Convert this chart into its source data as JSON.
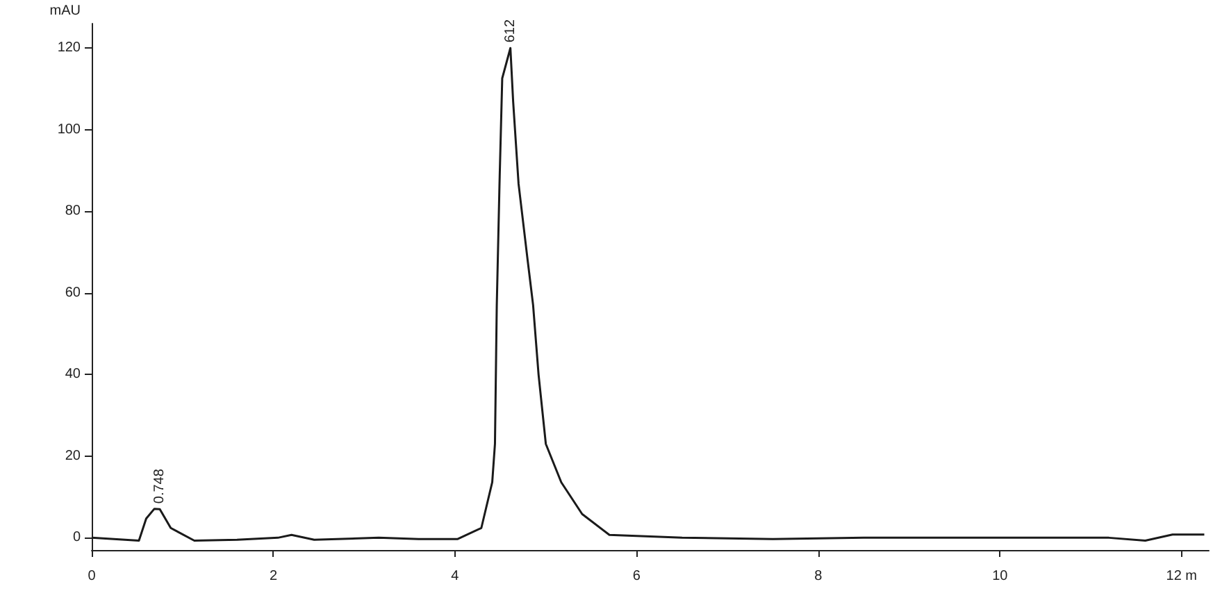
{
  "chart_data": {
    "type": "line",
    "ylabel": "mAU",
    "x": [
      0,
      0.52,
      0.6,
      0.69,
      0.75,
      0.87,
      1.13,
      1.6,
      2.05,
      2.2,
      2.45,
      3.16,
      3.6,
      4.03,
      4.29,
      4.41,
      4.44,
      4.46,
      4.49,
      4.52,
      4.61,
      4.64,
      4.7,
      4.8,
      4.86,
      4.92,
      5.0,
      5.17,
      5.4,
      5.7,
      6.5,
      7.5,
      8.5,
      9.5,
      10.5,
      11.2,
      11.6,
      11.9,
      12.25
    ],
    "series": [
      {
        "color": "#1a1a1a",
        "values": [
          0,
          -0.7,
          4.7,
          7.1,
          7,
          2.4,
          -0.7,
          -0.5,
          0,
          0.7,
          -0.5,
          0,
          -0.3,
          -0.3,
          2.4,
          13.6,
          23,
          57,
          86.7,
          112.6,
          120,
          107,
          86.7,
          68,
          57,
          40,
          23,
          13.6,
          5.8,
          0.7,
          0,
          -0.3,
          0,
          0,
          0,
          0,
          -0.7,
          0.8,
          0.8
        ]
      }
    ],
    "xlim": [
      0,
      12.3
    ],
    "ylim": [
      -3,
      126
    ],
    "xticks": [
      0,
      2,
      4,
      6,
      8,
      10,
      {
        "value": 12,
        "label": "12 m"
      }
    ],
    "yticks": [
      0,
      20,
      40,
      60,
      80,
      100,
      120
    ],
    "annotations": [
      {
        "text": "0.748",
        "x": 0.748,
        "y": 7
      },
      {
        "text": "612",
        "x": 4.612,
        "y": 120
      }
    ],
    "grid": false,
    "marker": "none",
    "line_style": "solid"
  }
}
